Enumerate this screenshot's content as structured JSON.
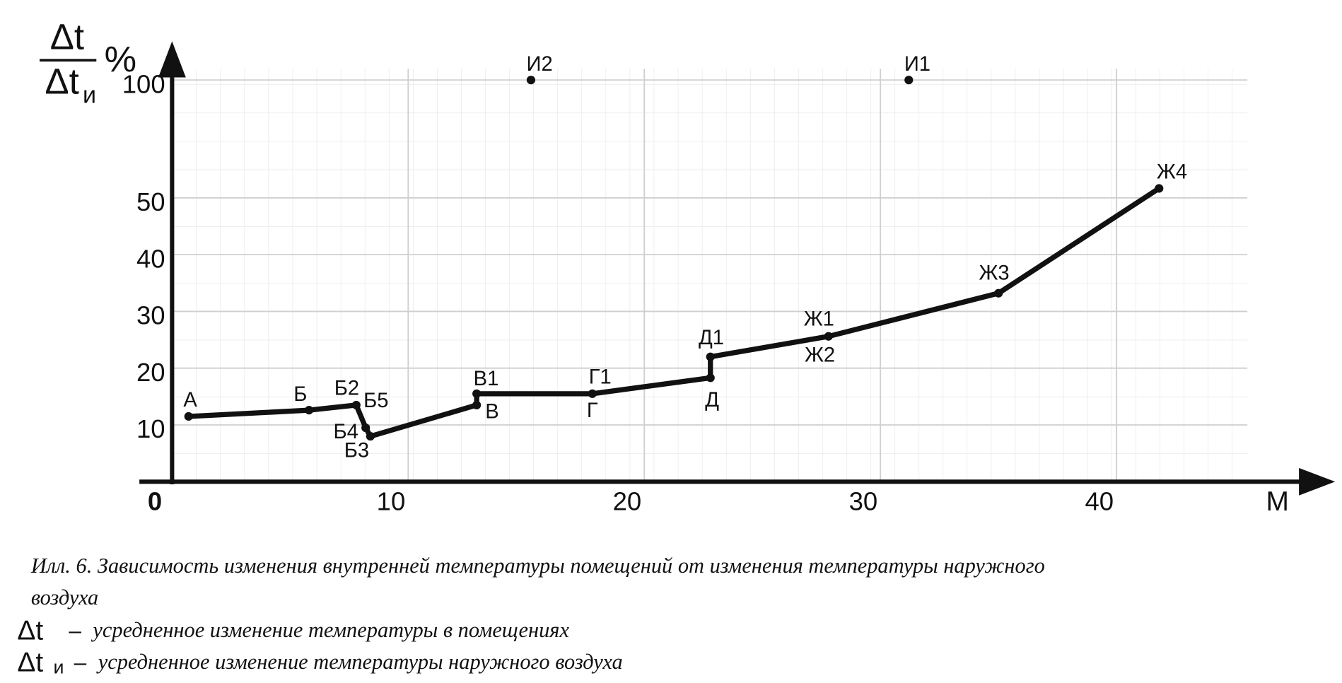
{
  "chart_data": {
    "type": "line",
    "y_label": {
      "numerator": "Δt",
      "denominator": "Δt",
      "denominator_sub": "и",
      "unit": "%"
    },
    "x_label": "М",
    "xlim": [
      0,
      48.6
    ],
    "ylim": [
      0,
      100
    ],
    "xticks": [
      0,
      10,
      20,
      30,
      40
    ],
    "yticks": [
      10,
      20,
      30,
      40,
      50,
      100
    ],
    "grid": true,
    "color": "#111111",
    "series": [
      {
        "x": [
          0.7,
          5.8,
          7.8,
          8.2,
          8.4,
          12.9,
          12.9,
          17.8,
          22.8,
          22.8,
          27.8,
          35.0,
          41.8
        ],
        "values": [
          11.5,
          12.6,
          13.5,
          9.5,
          8.0,
          13.5,
          15.5,
          15.5,
          18.3,
          22.0,
          25.6,
          33.2,
          54
        ],
        "labels": [
          [
            "А"
          ],
          [
            "Б"
          ],
          [
            "Б2"
          ],
          [
            "Б5",
            "Б4"
          ],
          [
            "Б3"
          ],
          [
            "В"
          ],
          [
            "В1"
          ],
          [
            "Г1",
            "Г"
          ],
          [
            "Д"
          ],
          [
            "Д1"
          ],
          [
            "Ж1",
            "Ж2"
          ],
          [
            "Ж3"
          ],
          [
            "Ж4"
          ]
        ]
      }
    ],
    "points": {
      "x": [
        15.2,
        31.2
      ],
      "values": [
        100,
        100
      ],
      "labels": [
        "И2",
        "И1"
      ]
    },
    "caption": [
      "Илл. 6. Зависимость изменения внутренней температуры помещений от изменения температуры наружного",
      "воздуха"
    ],
    "legend": [
      {
        "symbol": "Δt",
        "dash": "–",
        "text": "усредненное изменение температуры в помещениях"
      },
      {
        "symbol": "Δt",
        "subscript": "и",
        "dash": "–",
        "text": "усредненное изменение температуры наружного воздуха"
      }
    ]
  }
}
